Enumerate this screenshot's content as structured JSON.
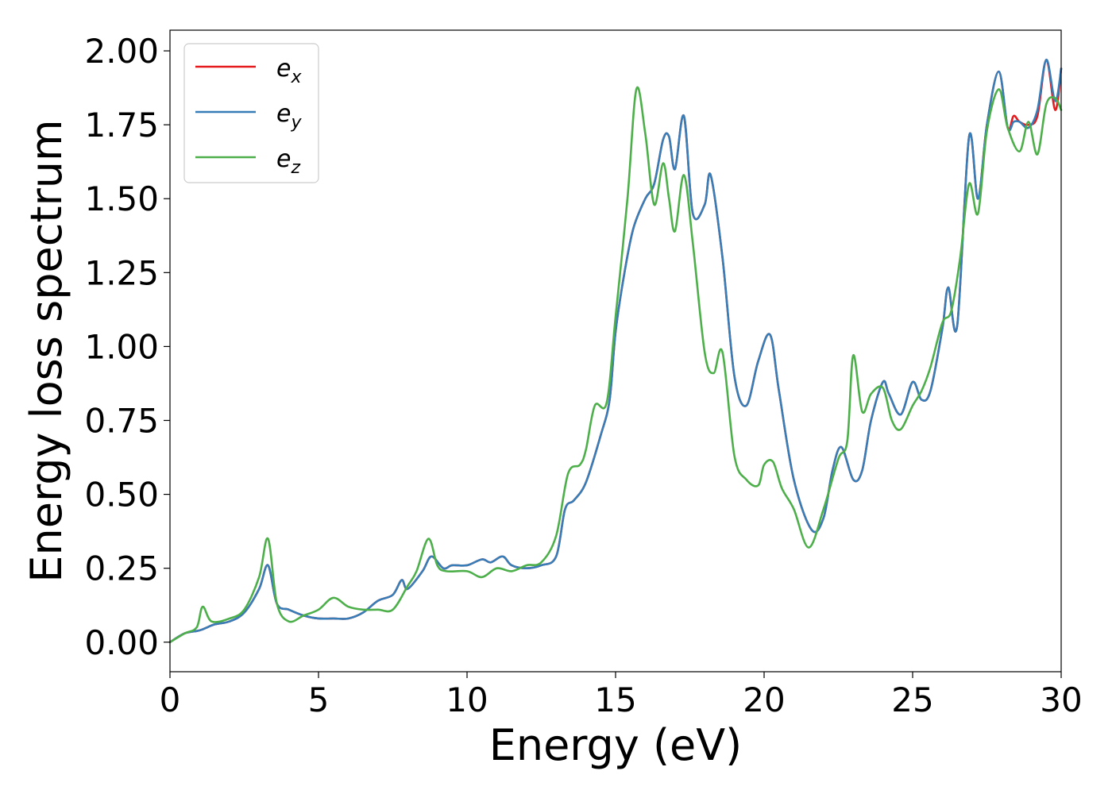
{
  "chart_data": {
    "type": "line",
    "title": "",
    "xlabel": "Energy (eV)",
    "ylabel": "Energy loss spectrum",
    "xlim": [
      0,
      30
    ],
    "ylim": [
      -0.1,
      2.07
    ],
    "xticks": [
      0,
      5,
      10,
      15,
      20,
      25,
      30
    ],
    "xtick_labels": [
      "0",
      "5",
      "10",
      "15",
      "20",
      "25",
      "30"
    ],
    "yticks": [
      0,
      0.25,
      0.5,
      0.75,
      1.0,
      1.25,
      1.5,
      1.75,
      2.0
    ],
    "ytick_labels": [
      "0.00",
      "0.25",
      "0.50",
      "0.75",
      "1.00",
      "1.25",
      "1.50",
      "1.75",
      "2.00"
    ],
    "grid": false,
    "legend_position": "top-left",
    "series": [
      {
        "name": "e_x",
        "label_base": "e",
        "label_sub": "x",
        "color": "#e41a1c",
        "x": [
          0,
          0.5,
          1.0,
          1.5,
          2.0,
          2.5,
          3.0,
          3.3,
          3.6,
          4.0,
          4.5,
          5.0,
          5.5,
          6.0,
          6.5,
          7.0,
          7.5,
          7.8,
          8.0,
          8.5,
          8.8,
          9.2,
          9.5,
          10.0,
          10.5,
          10.8,
          11.2,
          11.5,
          12.0,
          12.5,
          13.0,
          13.3,
          13.6,
          14.0,
          14.5,
          14.8,
          15.0,
          15.3,
          15.6,
          16.0,
          16.3,
          16.6,
          16.8,
          17.0,
          17.3,
          17.6,
          18.0,
          18.2,
          18.6,
          19.0,
          19.4,
          19.8,
          20.2,
          20.5,
          21.0,
          21.6,
          22.0,
          22.3,
          22.6,
          23.0,
          23.3,
          23.6,
          24.0,
          24.2,
          24.6,
          25.0,
          25.3,
          25.6,
          26.0,
          26.2,
          26.5,
          26.9,
          27.2,
          27.5,
          27.9,
          28.2,
          28.4,
          28.6,
          28.9,
          29.2,
          29.5,
          29.8,
          30.0
        ],
        "y": [
          0.0,
          0.03,
          0.04,
          0.06,
          0.07,
          0.1,
          0.18,
          0.26,
          0.13,
          0.11,
          0.09,
          0.08,
          0.08,
          0.08,
          0.1,
          0.14,
          0.16,
          0.21,
          0.18,
          0.24,
          0.29,
          0.25,
          0.26,
          0.26,
          0.28,
          0.27,
          0.29,
          0.26,
          0.25,
          0.26,
          0.29,
          0.45,
          0.48,
          0.54,
          0.7,
          0.82,
          1.05,
          1.25,
          1.4,
          1.5,
          1.55,
          1.7,
          1.71,
          1.6,
          1.78,
          1.45,
          1.48,
          1.58,
          1.3,
          0.9,
          0.8,
          0.95,
          1.04,
          0.85,
          0.55,
          0.38,
          0.42,
          0.58,
          0.66,
          0.55,
          0.58,
          0.75,
          0.88,
          0.84,
          0.77,
          0.88,
          0.82,
          0.85,
          1.06,
          1.2,
          1.07,
          1.71,
          1.5,
          1.75,
          1.93,
          1.74,
          1.78,
          1.76,
          1.75,
          1.78,
          1.97,
          1.8,
          1.94
        ]
      },
      {
        "name": "e_y",
        "label_base": "e",
        "label_sub": "y",
        "color": "#377eb8",
        "x": [
          0,
          0.5,
          1.0,
          1.5,
          2.0,
          2.5,
          3.0,
          3.3,
          3.6,
          4.0,
          4.5,
          5.0,
          5.5,
          6.0,
          6.5,
          7.0,
          7.5,
          7.8,
          8.0,
          8.5,
          8.8,
          9.2,
          9.5,
          10.0,
          10.5,
          10.8,
          11.2,
          11.5,
          12.0,
          12.5,
          13.0,
          13.3,
          13.6,
          14.0,
          14.5,
          14.8,
          15.0,
          15.3,
          15.6,
          16.0,
          16.3,
          16.6,
          16.8,
          17.0,
          17.3,
          17.6,
          18.0,
          18.2,
          18.6,
          19.0,
          19.4,
          19.8,
          20.2,
          20.5,
          21.0,
          21.6,
          22.0,
          22.3,
          22.6,
          23.0,
          23.3,
          23.6,
          24.0,
          24.2,
          24.6,
          25.0,
          25.3,
          25.6,
          26.0,
          26.2,
          26.5,
          26.9,
          27.2,
          27.5,
          27.9,
          28.2,
          28.4,
          28.6,
          28.9,
          29.2,
          29.5,
          29.8,
          30.0
        ],
        "y": [
          0.0,
          0.03,
          0.04,
          0.06,
          0.07,
          0.1,
          0.18,
          0.26,
          0.13,
          0.11,
          0.09,
          0.08,
          0.08,
          0.08,
          0.1,
          0.14,
          0.16,
          0.21,
          0.18,
          0.24,
          0.29,
          0.25,
          0.26,
          0.26,
          0.28,
          0.27,
          0.29,
          0.26,
          0.25,
          0.26,
          0.29,
          0.45,
          0.48,
          0.54,
          0.7,
          0.82,
          1.05,
          1.25,
          1.4,
          1.5,
          1.55,
          1.7,
          1.71,
          1.6,
          1.78,
          1.45,
          1.48,
          1.58,
          1.3,
          0.9,
          0.8,
          0.95,
          1.04,
          0.85,
          0.55,
          0.38,
          0.42,
          0.58,
          0.66,
          0.55,
          0.58,
          0.75,
          0.88,
          0.84,
          0.77,
          0.88,
          0.82,
          0.85,
          1.06,
          1.2,
          1.07,
          1.71,
          1.5,
          1.75,
          1.93,
          1.74,
          1.76,
          1.76,
          1.74,
          1.8,
          1.97,
          1.83,
          1.94
        ]
      },
      {
        "name": "e_z",
        "label_base": "e",
        "label_sub": "z",
        "color": "#4daf4a",
        "x": [
          0,
          0.5,
          0.9,
          1.1,
          1.4,
          2.0,
          2.5,
          3.0,
          3.3,
          3.6,
          4.0,
          4.5,
          5.0,
          5.5,
          6.0,
          6.5,
          7.0,
          7.5,
          8.0,
          8.3,
          8.7,
          9.0,
          9.3,
          10.0,
          10.5,
          11.0,
          11.5,
          12.0,
          12.5,
          13.0,
          13.4,
          13.8,
          14.0,
          14.3,
          14.7,
          15.0,
          15.4,
          15.7,
          16.0,
          16.3,
          16.6,
          16.8,
          17.0,
          17.3,
          17.6,
          18.0,
          18.3,
          18.6,
          19.0,
          19.4,
          19.8,
          20.0,
          20.3,
          20.6,
          21.0,
          21.5,
          22.0,
          22.5,
          22.8,
          23.0,
          23.3,
          23.6,
          24.0,
          24.3,
          24.6,
          25.0,
          25.3,
          25.6,
          26.0,
          26.3,
          26.6,
          26.9,
          27.2,
          27.5,
          27.9,
          28.2,
          28.6,
          28.9,
          29.2,
          29.5,
          29.8,
          30.0
        ],
        "y": [
          0.0,
          0.03,
          0.05,
          0.12,
          0.07,
          0.08,
          0.11,
          0.22,
          0.35,
          0.13,
          0.07,
          0.09,
          0.11,
          0.15,
          0.12,
          0.11,
          0.11,
          0.11,
          0.19,
          0.24,
          0.35,
          0.26,
          0.24,
          0.24,
          0.22,
          0.25,
          0.24,
          0.26,
          0.27,
          0.36,
          0.57,
          0.6,
          0.65,
          0.8,
          0.81,
          1.1,
          1.5,
          1.87,
          1.72,
          1.48,
          1.62,
          1.5,
          1.39,
          1.58,
          1.35,
          0.98,
          0.91,
          0.98,
          0.63,
          0.55,
          0.53,
          0.6,
          0.61,
          0.52,
          0.45,
          0.32,
          0.45,
          0.62,
          0.68,
          0.97,
          0.78,
          0.84,
          0.86,
          0.75,
          0.72,
          0.8,
          0.85,
          0.93,
          1.08,
          1.12,
          1.3,
          1.55,
          1.45,
          1.73,
          1.87,
          1.74,
          1.66,
          1.76,
          1.65,
          1.82,
          1.84,
          1.8
        ]
      }
    ]
  }
}
